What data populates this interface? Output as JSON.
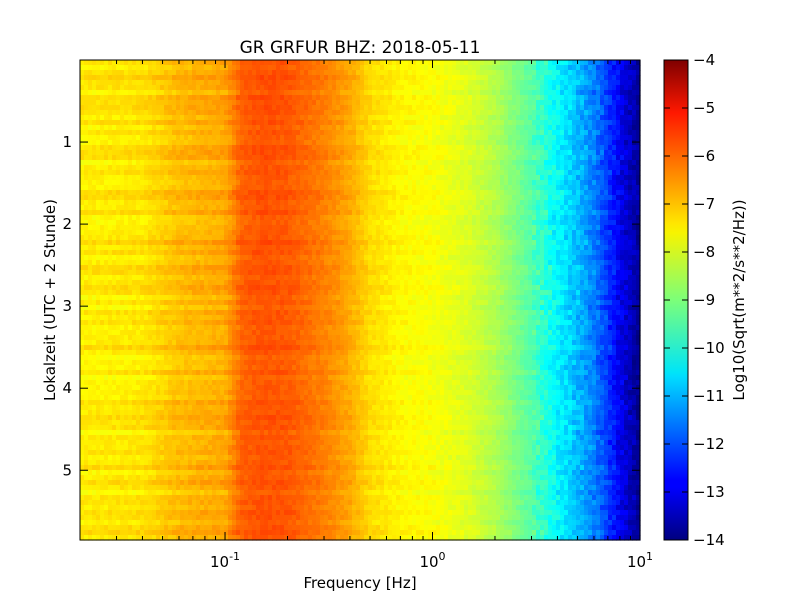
{
  "chart_data": {
    "type": "heatmap",
    "title": "GR GRFUR BHZ: 2018-05-11",
    "xlabel": "Frequency [Hz]",
    "ylabel": "Lokalzeit (UTC + 2 Stunde)",
    "xscale": "log",
    "xlim": [
      0.02,
      10
    ],
    "ylim": [
      5.85,
      0
    ],
    "x_ticks": [
      {
        "value": 0.1,
        "base": "10",
        "exp": "-1"
      },
      {
        "value": 1,
        "base": "10",
        "exp": "0"
      },
      {
        "value": 10,
        "base": "10",
        "exp": "1"
      }
    ],
    "y_ticks": [
      {
        "value": 1,
        "label": "1"
      },
      {
        "value": 2,
        "label": "2"
      },
      {
        "value": 3,
        "label": "3"
      },
      {
        "value": 4,
        "label": "4"
      },
      {
        "value": 5,
        "label": "5"
      }
    ],
    "colorbar": {
      "label": "Log10(Sqrt(m**2/s**2/Hz))",
      "range": [
        -14,
        -4
      ],
      "colormap": "jet",
      "ticks": [
        "-4",
        "-5",
        "-6",
        "-7",
        "-8",
        "-9",
        "-10",
        "-11",
        "-12",
        "-13",
        "-14"
      ]
    },
    "spectrum_profile": {
      "frequency_hz": [
        0.02,
        0.04,
        0.06,
        0.1,
        0.12,
        0.15,
        0.2,
        0.3,
        0.4,
        0.5,
        0.7,
        1.0,
        1.5,
        2.0,
        3.0,
        4.0,
        5.0,
        6.0,
        7.0,
        8.0,
        9.0,
        10.0
      ],
      "log10_amplitude": [
        -7.6,
        -7.5,
        -7.1,
        -6.9,
        -6.2,
        -6.05,
        -6.1,
        -6.5,
        -6.9,
        -7.4,
        -7.7,
        -7.8,
        -8.1,
        -8.5,
        -9.4,
        -10.3,
        -10.9,
        -11.5,
        -12.2,
        -12.9,
        -13.4,
        -13.8
      ]
    }
  }
}
